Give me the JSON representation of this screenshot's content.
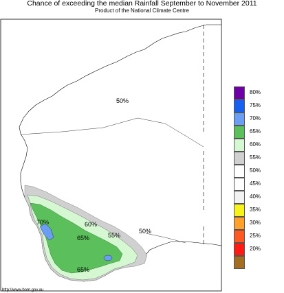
{
  "title": "Chance of exceeding the median Rainfall September to November 2011",
  "subtitle": "Product of the National Climate Centre",
  "credit": "http://www.bom.gov.au",
  "map_labels": {
    "north": "50%",
    "southeast": "50%",
    "band_60": "60%",
    "band_55": "55%",
    "band_65_north": "65%",
    "band_70": "70%",
    "band_65_south": "65%"
  },
  "legend": [
    {
      "label": "80%",
      "color": "#6f00a8"
    },
    {
      "label": "75%",
      "color": "#1660f0"
    },
    {
      "label": "70%",
      "color": "#6a9ef5"
    },
    {
      "label": "65%",
      "color": "#5bbf5b"
    },
    {
      "label": "60%",
      "color": "#d5f8d2"
    },
    {
      "label": "55%",
      "color": "#d0d0d0"
    },
    {
      "label": "50%",
      "color": "#ffffff"
    },
    {
      "label": "45%",
      "color": "#ffffff"
    },
    {
      "label": "40%",
      "color": "#f2f2f2"
    },
    {
      "label": "35%",
      "color": "#f7f21a"
    },
    {
      "label": "30%",
      "color": "#ffa12a"
    },
    {
      "label": "25%",
      "color": "#ff5a22"
    },
    {
      "label": "20%",
      "color": "#ff1a14"
    },
    {
      "label": "",
      "color": "#a36d22"
    }
  ]
}
